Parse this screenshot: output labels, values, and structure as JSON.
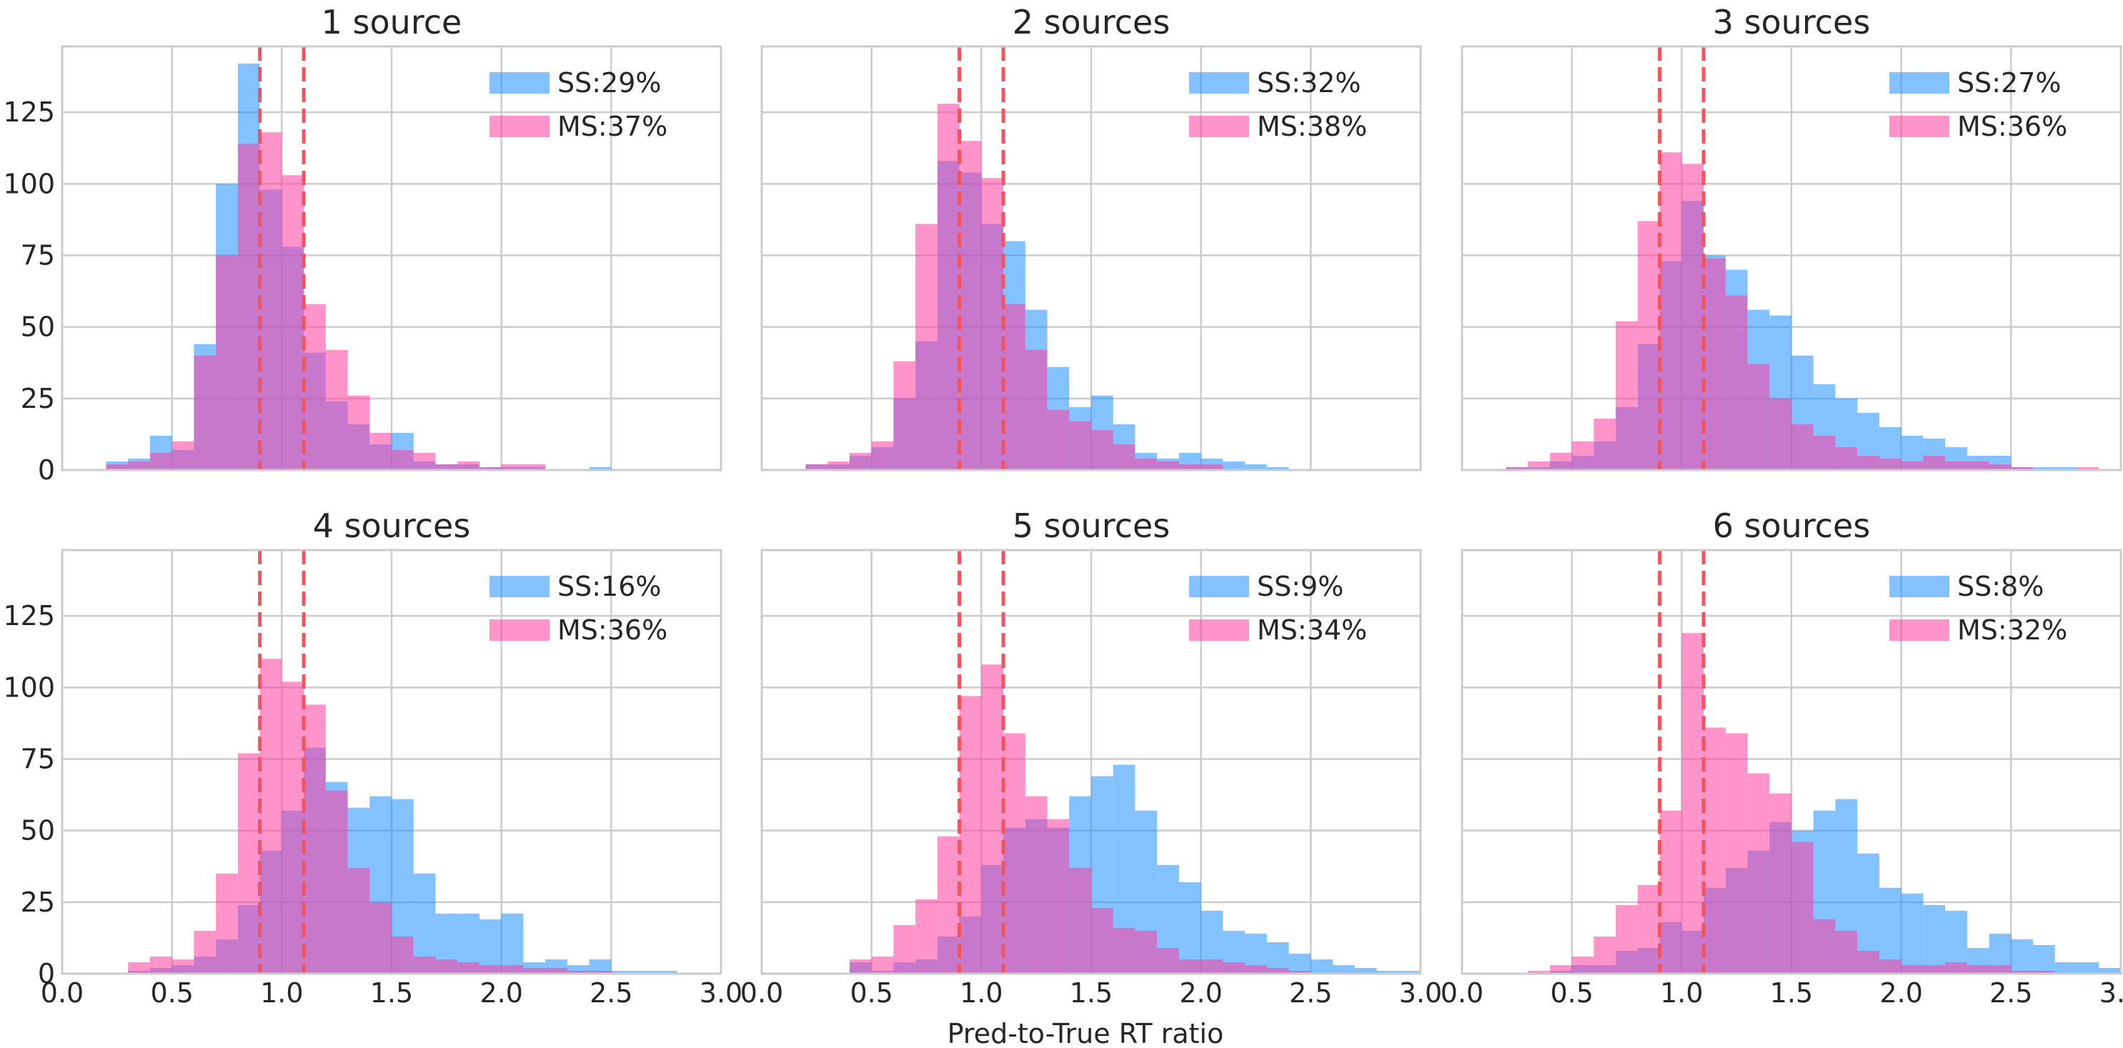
{
  "chart_data": {
    "type": "bar",
    "layout": "2x3 small multiples of overlapping histograms",
    "xlabel": "Pred-to-True RT ratio",
    "xlim": [
      0,
      3.0
    ],
    "ylim": [
      0,
      148
    ],
    "x_ticks": [
      "0.0",
      "0.5",
      "1.0",
      "1.5",
      "2.0",
      "2.5",
      "3.0"
    ],
    "y_ticks": [
      "0",
      "25",
      "50",
      "75",
      "100",
      "125"
    ],
    "grid": true,
    "legend_placement": "top-right",
    "bin_width": 0.1,
    "colors": {
      "SS": "#1e90ff",
      "MS": "#ff3ca0",
      "reference_lines": "#f0545e"
    },
    "reference_lines": [
      0.9,
      1.1
    ],
    "panels": [
      {
        "title": "1 source",
        "legend": [
          "SS:29%",
          "MS:37%"
        ],
        "bin_starts": [
          0.2,
          0.3,
          0.4,
          0.5,
          0.6,
          0.7,
          0.8,
          0.9,
          1.0,
          1.1,
          1.2,
          1.3,
          1.4,
          1.5,
          1.6,
          1.7,
          1.8,
          1.9,
          2.0,
          2.1,
          2.2,
          2.3,
          2.4,
          2.5
        ],
        "series": [
          {
            "name": "SS",
            "values": [
              3,
              4,
              12,
              7,
              44,
              100,
              142,
              98,
              78,
              41,
              24,
              16,
              9,
              13,
              3,
              2,
              2,
              1,
              1,
              1,
              0,
              0,
              1,
              0
            ]
          },
          {
            "name": "MS",
            "values": [
              2,
              3,
              6,
              10,
              40,
              75,
              114,
              118,
              103,
              58,
              42,
              26,
              13,
              7,
              6,
              2,
              3,
              1,
              2,
              2,
              0,
              0,
              0,
              0
            ]
          }
        ]
      },
      {
        "title": "2 sources",
        "legend": [
          "SS:32%",
          "MS:38%"
        ],
        "bin_starts": [
          0.2,
          0.3,
          0.4,
          0.5,
          0.6,
          0.7,
          0.8,
          0.9,
          1.0,
          1.1,
          1.2,
          1.3,
          1.4,
          1.5,
          1.6,
          1.7,
          1.8,
          1.9,
          2.0,
          2.1,
          2.2,
          2.3,
          2.4,
          2.5
        ],
        "series": [
          {
            "name": "SS",
            "values": [
              2,
              2,
              5,
              8,
              25,
              45,
              108,
              104,
              86,
              80,
              56,
              36,
              22,
              26,
              16,
              6,
              4,
              6,
              4,
              3,
              2,
              1,
              0,
              0
            ]
          },
          {
            "name": "MS",
            "values": [
              2,
              3,
              6,
              10,
              38,
              86,
              128,
              115,
              102,
              58,
              42,
              21,
              17,
              14,
              9,
              4,
              3,
              2,
              2,
              0,
              0,
              0,
              0,
              0
            ]
          }
        ]
      },
      {
        "title": "3 sources",
        "legend": [
          "SS:27%",
          "MS:36%"
        ],
        "bin_starts": [
          0.2,
          0.3,
          0.4,
          0.5,
          0.6,
          0.7,
          0.8,
          0.9,
          1.0,
          1.1,
          1.2,
          1.3,
          1.4,
          1.5,
          1.6,
          1.7,
          1.8,
          1.9,
          2.0,
          2.1,
          2.2,
          2.3,
          2.4,
          2.5,
          2.6,
          2.7,
          2.8
        ],
        "series": [
          {
            "name": "SS",
            "values": [
              1,
              1,
              3,
              5,
              10,
              22,
              44,
              73,
              94,
              75,
              70,
              56,
              54,
              40,
              30,
              25,
              20,
              15,
              12,
              11,
              8,
              5,
              5,
              1,
              1,
              1,
              0
            ]
          },
          {
            "name": "MS",
            "values": [
              1,
              3,
              6,
              10,
              18,
              52,
              87,
              111,
              107,
              74,
              61,
              37,
              25,
              16,
              12,
              8,
              5,
              4,
              3,
              5,
              3,
              3,
              2,
              1,
              0,
              0,
              1
            ]
          }
        ]
      },
      {
        "title": "4 sources",
        "legend": [
          "SS:16%",
          "MS:36%"
        ],
        "bin_starts": [
          0.3,
          0.4,
          0.5,
          0.6,
          0.7,
          0.8,
          0.9,
          1.0,
          1.1,
          1.2,
          1.3,
          1.4,
          1.5,
          1.6,
          1.7,
          1.8,
          1.9,
          2.0,
          2.1,
          2.2,
          2.3,
          2.4,
          2.5,
          2.6,
          2.7
        ],
        "series": [
          {
            "name": "SS",
            "values": [
              1,
              2,
              3,
              6,
              12,
              24,
              43,
              57,
              79,
              67,
              58,
              62,
              61,
              35,
              21,
              21,
              19,
              21,
              4,
              5,
              3,
              5,
              1,
              1,
              1
            ]
          },
          {
            "name": "MS",
            "values": [
              4,
              6,
              5,
              15,
              35,
              77,
              110,
              102,
              94,
              64,
              37,
              25,
              13,
              6,
              5,
              4,
              3,
              3,
              2,
              2,
              1,
              1,
              0,
              0,
              0
            ]
          }
        ]
      },
      {
        "title": "5 sources",
        "legend": [
          "SS:9%",
          "MS:34%"
        ],
        "bin_starts": [
          0.4,
          0.5,
          0.6,
          0.7,
          0.8,
          0.9,
          1.0,
          1.1,
          1.2,
          1.3,
          1.4,
          1.5,
          1.6,
          1.7,
          1.8,
          1.9,
          2.0,
          2.1,
          2.2,
          2.3,
          2.4,
          2.5,
          2.6,
          2.7,
          2.8,
          2.9
        ],
        "series": [
          {
            "name": "SS",
            "values": [
              4,
              1,
              4,
              5,
              13,
              20,
              38,
              51,
              54,
              51,
              62,
              69,
              73,
              57,
              38,
              32,
              22,
              15,
              14,
              11,
              7,
              5,
              3,
              2,
              1,
              1
            ]
          },
          {
            "name": "MS",
            "values": [
              5,
              6,
              17,
              26,
              48,
              97,
              108,
              84,
              62,
              54,
              37,
              23,
              16,
              15,
              9,
              5,
              5,
              4,
              3,
              2,
              1,
              0,
              0,
              0,
              0,
              0
            ]
          }
        ]
      },
      {
        "title": "6 sources",
        "legend": [
          "SS:8%",
          "MS:32%"
        ],
        "bin_starts": [
          0.3,
          0.4,
          0.5,
          0.6,
          0.7,
          0.8,
          0.9,
          1.0,
          1.1,
          1.2,
          1.3,
          1.4,
          1.5,
          1.6,
          1.7,
          1.8,
          1.9,
          2.0,
          2.1,
          2.2,
          2.3,
          2.4,
          2.5,
          2.6,
          2.7,
          2.8,
          2.9
        ],
        "series": [
          {
            "name": "SS",
            "values": [
              0,
              1,
              3,
              3,
              8,
              9,
              18,
              15,
              30,
              37,
              43,
              53,
              50,
              57,
              61,
              42,
              30,
              28,
              24,
              22,
              9,
              14,
              12,
              10,
              4,
              4,
              2
            ]
          },
          {
            "name": "MS",
            "values": [
              1,
              3,
              6,
              13,
              24,
              31,
              57,
              119,
              86,
              84,
              70,
              63,
              46,
              19,
              15,
              8,
              5,
              3,
              3,
              4,
              3,
              3,
              1,
              1,
              0,
              0,
              0
            ]
          }
        ]
      }
    ]
  }
}
